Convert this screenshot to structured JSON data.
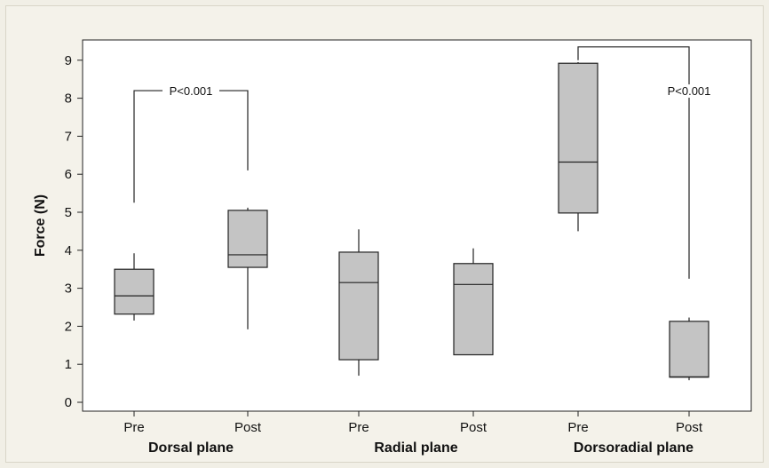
{
  "chart_data": {
    "type": "box",
    "ylabel": "Force (N)",
    "ylim": [
      0,
      9
    ],
    "yticks": [
      0,
      1,
      2,
      3,
      4,
      5,
      6,
      7,
      8,
      9
    ],
    "grid": false,
    "colors": {
      "box_fill": "#c4c4c4",
      "stroke": "#222222",
      "plot_bg": "#ffffff",
      "page_bg": "#f1efe6"
    },
    "groups": [
      {
        "label": "Dorsal plane",
        "categories": [
          "Pre",
          "Post"
        ]
      },
      {
        "label": "Radial plane",
        "categories": [
          "Pre",
          "Post"
        ]
      },
      {
        "label": "Dorsoradial plane",
        "categories": [
          "Pre",
          "Post"
        ]
      }
    ],
    "boxes": [
      {
        "group": "Dorsal plane",
        "category": "Pre",
        "min": 2.15,
        "q1": 2.32,
        "median": 2.8,
        "q3": 3.5,
        "max": 3.92
      },
      {
        "group": "Dorsal plane",
        "category": "Post",
        "min": 1.92,
        "q1": 3.55,
        "median": 3.88,
        "q3": 5.05,
        "max": 5.12
      },
      {
        "group": "Radial plane",
        "category": "Pre",
        "min": 0.7,
        "q1": 1.12,
        "median": 3.15,
        "q3": 3.95,
        "max": 4.55
      },
      {
        "group": "Radial plane",
        "category": "Post",
        "min": 1.25,
        "q1": 1.25,
        "median": 3.1,
        "q3": 3.65,
        "max": 4.05
      },
      {
        "group": "Dorsoradial plane",
        "category": "Pre",
        "min": 4.5,
        "q1": 4.98,
        "median": 6.32,
        "q3": 8.92,
        "max": 8.95
      },
      {
        "group": "Dorsoradial plane",
        "category": "Post",
        "min": 0.58,
        "q1": 0.66,
        "median": 0.67,
        "q3": 2.13,
        "max": 2.23
      }
    ],
    "annotations": [
      {
        "text": "P<0.001",
        "from": "Dorsal plane Pre",
        "to": "Dorsal plane Post",
        "bracket_y": 8.2,
        "left_end": 5.25,
        "right_end": 6.1
      },
      {
        "text": "P<0.001",
        "from": "Dorsoradial plane Pre",
        "to": "Dorsoradial plane Post",
        "bracket_y": 9.35,
        "left_end": 9.0,
        "right_end": 3.25
      }
    ]
  }
}
